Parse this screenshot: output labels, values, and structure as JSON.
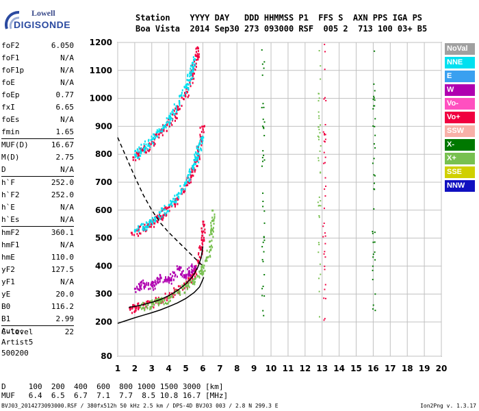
{
  "logo": {
    "lowell": "Lowell",
    "digisonde": "DIGISONDE"
  },
  "header": {
    "labels": "Station    YYYY DAY   DDD HHMMSS P1  FFS S  AXN PPS IGA PS",
    "values": "Boa Vista  2014 Sep30 273 093000 RSF  005 2  713 100 03+ B5"
  },
  "params_groups": [
    [
      {
        "k": "foF2",
        "v": "6.050"
      },
      {
        "k": "foF1",
        "v": "N/A"
      },
      {
        "k": "foF1p",
        "v": "N/A"
      },
      {
        "k": "foE",
        "v": "N/A"
      },
      {
        "k": "foEp",
        "v": "0.77"
      },
      {
        "k": "fxI",
        "v": "6.65"
      },
      {
        "k": "foEs",
        "v": "N/A"
      },
      {
        "k": "fmin",
        "v": "1.65"
      }
    ],
    [
      {
        "k": "MUF(D)",
        "v": "16.67"
      },
      {
        "k": "M(D)",
        "v": "2.75"
      },
      {
        "k": "D",
        "v": "N/A"
      }
    ],
    [
      {
        "k": "h`F",
        "v": "252.0"
      },
      {
        "k": "h`F2",
        "v": "252.0"
      },
      {
        "k": "h`E",
        "v": "N/A"
      },
      {
        "k": "h`Es",
        "v": "N/A"
      }
    ],
    [
      {
        "k": "hmF2",
        "v": "360.1"
      },
      {
        "k": "hmF1",
        "v": "N/A"
      },
      {
        "k": "hmE",
        "v": "110.0"
      },
      {
        "k": "yF2",
        "v": "127.5"
      },
      {
        "k": "yF1",
        "v": "N/A"
      },
      {
        "k": "yE",
        "v": "20.0"
      },
      {
        "k": "B0",
        "v": "116.2"
      },
      {
        "k": "B1",
        "v": "2.99"
      }
    ],
    [
      {
        "k": "C-level",
        "v": "22"
      }
    ]
  ],
  "auto": {
    "line1": "Auto:",
    "line2": "Artist5",
    "line3": "500200"
  },
  "legend": [
    {
      "name": "NoVal",
      "color": "#a0a0a0"
    },
    {
      "name": "NNE",
      "color": "#00e0f0"
    },
    {
      "name": "E",
      "color": "#3aa0f0"
    },
    {
      "name": "W",
      "color": "#b000b0"
    },
    {
      "name": "Vo-",
      "color": "#ff50c0"
    },
    {
      "name": "Vo+",
      "color": "#f00040"
    },
    {
      "name": "SSW",
      "color": "#f8b0a8"
    },
    {
      "name": "X-",
      "color": "#007800"
    },
    {
      "name": "X+",
      "color": "#78c050"
    },
    {
      "name": "SSE",
      "color": "#d0d000"
    },
    {
      "name": "NNW",
      "color": "#1010c0"
    }
  ],
  "footer": {
    "line1": "D     100  200  400  600  800 1000 1500 3000 [km]",
    "line2": "MUF   6.4  6.5  6.7  7.1  7.7  8.5 10.8 16.7 [MHz]",
    "line3": "BVJ03_2014273093000.RSF / 380fx512h 50 kHz 2.5 km / DPS-4D BVJ03 003 / 2.8 N 299.3 E",
    "version": "Ion2Png v. 1.3.17"
  },
  "chart_data": {
    "type": "scatter",
    "title": "",
    "xlabel": "",
    "ylabel": "",
    "xlim": [
      1,
      20
    ],
    "ylim": [
      80,
      1200
    ],
    "xticks": [
      1,
      2,
      3,
      4,
      5,
      6,
      7,
      8,
      9,
      10,
      11,
      12,
      13,
      14,
      15,
      16,
      17,
      18,
      19,
      20
    ],
    "yticks": [
      80,
      200,
      300,
      400,
      500,
      600,
      700,
      800,
      900,
      1000,
      1100,
      1200
    ],
    "grid": true,
    "series": [
      {
        "trace": "O-trace F2 (1 hop)",
        "color": "#f00040",
        "points": [
          [
            1.7,
            250
          ],
          [
            2.0,
            255
          ],
          [
            2.5,
            262
          ],
          [
            3.0,
            270
          ],
          [
            3.5,
            282
          ],
          [
            4.0,
            296
          ],
          [
            4.5,
            315
          ],
          [
            5.0,
            340
          ],
          [
            5.3,
            362
          ],
          [
            5.5,
            385
          ],
          [
            5.7,
            420
          ],
          [
            5.85,
            460
          ],
          [
            5.95,
            510
          ],
          [
            6.0,
            560
          ]
        ]
      },
      {
        "trace": "X-trace F2 (1 hop)",
        "color": "#78c050",
        "points": [
          [
            2.3,
            258
          ],
          [
            3.0,
            266
          ],
          [
            3.5,
            276
          ],
          [
            4.0,
            290
          ],
          [
            4.5,
            306
          ],
          [
            5.0,
            328
          ],
          [
            5.5,
            355
          ],
          [
            5.9,
            385
          ],
          [
            6.2,
            420
          ],
          [
            6.4,
            470
          ],
          [
            6.5,
            530
          ],
          [
            6.55,
            600
          ]
        ]
      },
      {
        "trace": "O-trace F2 (2 hops)",
        "color": "#f00040",
        "points": [
          [
            1.8,
            520
          ],
          [
            2.5,
            535
          ],
          [
            3.0,
            555
          ],
          [
            3.5,
            580
          ],
          [
            4.0,
            612
          ],
          [
            4.5,
            645
          ],
          [
            5.0,
            690
          ],
          [
            5.3,
            725
          ],
          [
            5.6,
            780
          ],
          [
            5.8,
            840
          ],
          [
            5.95,
            900
          ]
        ]
      },
      {
        "trace": "NNE trace (2 hops)",
        "color": "#00e0f0",
        "points": [
          [
            2.0,
            530
          ],
          [
            3.0,
            560
          ],
          [
            4.0,
            620
          ],
          [
            5.0,
            700
          ],
          [
            5.6,
            790
          ],
          [
            5.9,
            860
          ]
        ]
      },
      {
        "trace": "O-trace F2 (3 hops)",
        "color": "#f00040",
        "points": [
          [
            1.9,
            790
          ],
          [
            2.5,
            815
          ],
          [
            3.0,
            845
          ],
          [
            3.5,
            880
          ],
          [
            4.0,
            915
          ],
          [
            4.5,
            960
          ],
          [
            5.0,
            1020
          ],
          [
            5.3,
            1070
          ],
          [
            5.5,
            1120
          ],
          [
            5.7,
            1180
          ]
        ]
      },
      {
        "trace": "NNE trace (3 hops)",
        "color": "#00e0f0",
        "points": [
          [
            2.0,
            800
          ],
          [
            3.0,
            855
          ],
          [
            4.0,
            930
          ],
          [
            5.0,
            1040
          ],
          [
            5.5,
            1140
          ]
        ]
      },
      {
        "trace": "Oblique spread (W)",
        "color": "#b000b0",
        "points": [
          [
            2.0,
            320
          ],
          [
            2.5,
            340
          ],
          [
            3.0,
            330
          ],
          [
            3.5,
            360
          ],
          [
            4.0,
            350
          ],
          [
            4.5,
            390
          ],
          [
            5.0,
            370
          ],
          [
            5.5,
            400
          ]
        ]
      }
    ],
    "curves": [
      {
        "name": "electron density profile",
        "style": "solid",
        "color": "#000000",
        "points": [
          [
            1.0,
            195
          ],
          [
            1.5,
            205
          ],
          [
            2.0,
            215
          ],
          [
            2.5,
            224
          ],
          [
            3.0,
            233
          ],
          [
            3.5,
            243
          ],
          [
            4.0,
            255
          ],
          [
            4.5,
            268
          ],
          [
            5.0,
            284
          ],
          [
            5.5,
            306
          ],
          [
            5.8,
            325
          ],
          [
            5.95,
            345
          ],
          [
            6.05,
            360
          ]
        ]
      },
      {
        "name": "O-trace model",
        "style": "solid",
        "color": "#000000",
        "points": [
          [
            1.65,
            252
          ],
          [
            2.0,
            256
          ],
          [
            2.5,
            262
          ],
          [
            3.0,
            270
          ],
          [
            3.5,
            280
          ],
          [
            4.0,
            294
          ],
          [
            4.5,
            312
          ],
          [
            5.0,
            336
          ],
          [
            5.4,
            362
          ],
          [
            5.7,
            395
          ],
          [
            5.9,
            430
          ],
          [
            6.0,
            470
          ]
        ]
      },
      {
        "name": "MUF(D) curve",
        "style": "dashed",
        "color": "#000000",
        "points": [
          [
            1.0,
            860
          ],
          [
            1.5,
            790
          ],
          [
            2.0,
            720
          ],
          [
            2.5,
            655
          ],
          [
            3.0,
            600
          ],
          [
            3.5,
            555
          ],
          [
            4.0,
            520
          ],
          [
            4.5,
            490
          ],
          [
            5.0,
            460
          ],
          [
            5.5,
            430
          ],
          [
            6.0,
            400
          ]
        ]
      }
    ],
    "vertical_bands": [
      {
        "x": 12.8,
        "color": "#78c050"
      },
      {
        "x": 13.1,
        "color": "#f00040"
      },
      {
        "x": 9.5,
        "color": "#007800"
      },
      {
        "x": 16.0,
        "color": "#007800"
      }
    ]
  }
}
